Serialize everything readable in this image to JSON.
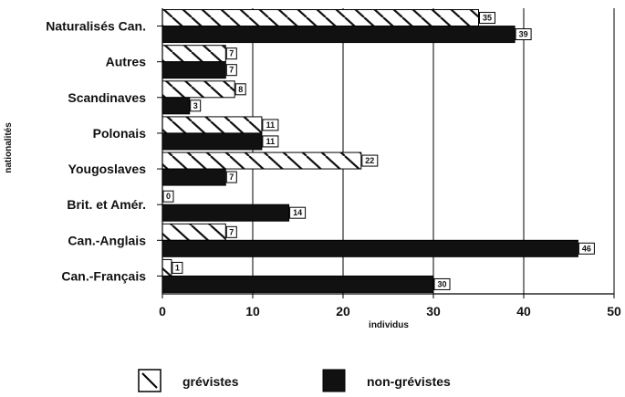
{
  "chart_data": {
    "type": "bar",
    "orientation": "horizontal",
    "categories": [
      "Naturalisés Can.",
      "Autres",
      "Scandinaves",
      "Polonais",
      "Yougoslaves",
      "Brit. et Amér.",
      "Can.-Anglais",
      "Can.-Français"
    ],
    "series": [
      {
        "name": "grévistes",
        "values": [
          35,
          7,
          8,
          11,
          22,
          0,
          7,
          1
        ],
        "fill": "hatch"
      },
      {
        "name": "non-grévistes",
        "values": [
          39,
          7,
          3,
          11,
          7,
          14,
          46,
          30
        ],
        "fill": "solid"
      }
    ],
    "xlabel": "individus",
    "ylabel": "nationalités",
    "xlim": [
      0,
      50
    ],
    "xticks": [
      0,
      10,
      20,
      30,
      40,
      50
    ],
    "grid": "vertical",
    "legend_position": "bottom",
    "colors": {
      "bar": "#111111",
      "hatch_bg": "#ffffff",
      "grid": "#000000"
    }
  }
}
